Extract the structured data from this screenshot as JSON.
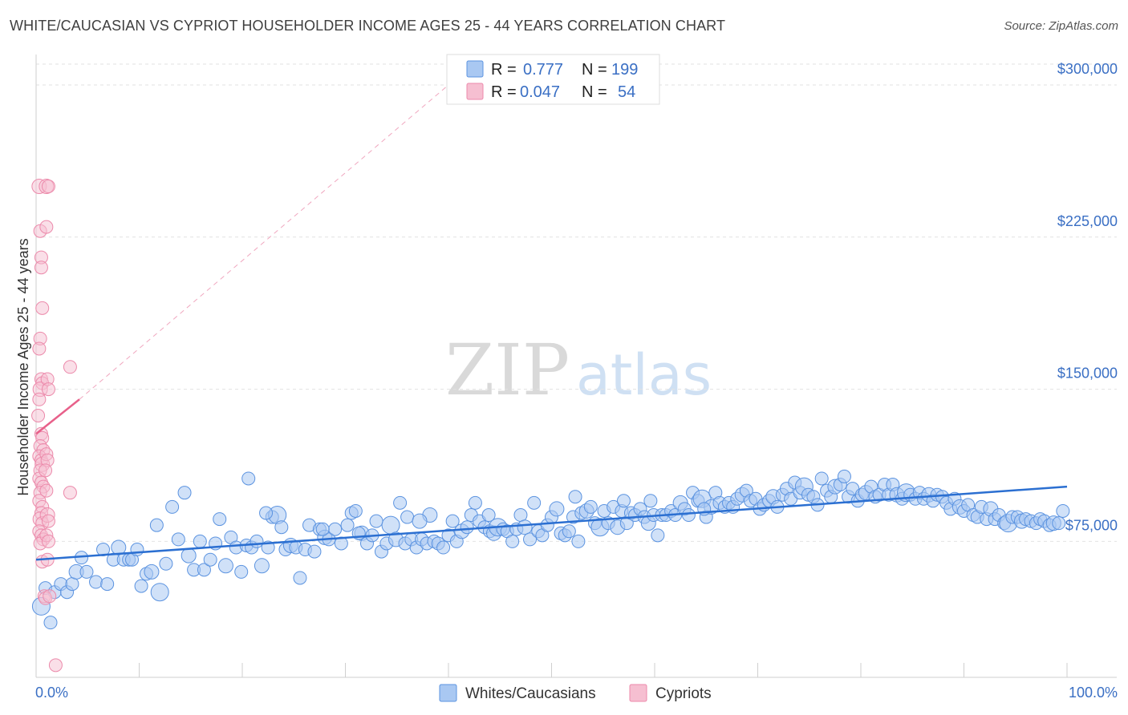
{
  "header": {
    "title": "WHITE/CAUCASIAN VS CYPRIOT HOUSEHOLDER INCOME AGES 25 - 44 YEARS CORRELATION CHART",
    "source": "Source: ZipAtlas.com"
  },
  "watermark": {
    "part1": "ZIP",
    "part2": "atlas"
  },
  "legend": {
    "rows": [
      {
        "r_label": "R =",
        "r_value": "0.777",
        "n_label": "N =",
        "n_value": "199"
      },
      {
        "r_label": "R =",
        "r_value": "0.047",
        "n_label": "N =",
        "n_value": "54"
      }
    ]
  },
  "bottom_legend": {
    "items": [
      "Whites/Caucasians",
      "Cypriots"
    ]
  },
  "chart_data": {
    "type": "scatter",
    "xlabel": "",
    "ylabel": "Householder Income Ages 25 - 44 years",
    "xlim": [
      0,
      100
    ],
    "ylim": [
      8000,
      315000
    ],
    "x_tick_labels": [
      "0.0%",
      "100.0%"
    ],
    "y_ticks": [
      75000,
      150000,
      225000,
      300000
    ],
    "y_tick_labels": [
      "$75,000",
      "$150,000",
      "$225,000",
      "$300,000"
    ],
    "grid": "horizontal-dashed",
    "colors": {
      "whites": "#5b93e0",
      "whites_fill": "#a9c8f2",
      "cypriots": "#ec8aab",
      "cypriots_fill": "#f6bfd1",
      "whites_line": "#2b6fd1",
      "cypriots_line": "#e8608a"
    },
    "series": [
      {
        "name": "Whites/Caucasians",
        "trendline": {
          "x": [
            0,
            100
          ],
          "y": [
            66000,
            102000
          ]
        },
        "points": [
          [
            0.5,
            43000
          ],
          [
            0.9,
            52000
          ],
          [
            1.4,
            35000
          ],
          [
            1.8,
            50000
          ],
          [
            2.4,
            54000
          ],
          [
            3.0,
            50000
          ],
          [
            3.5,
            54000
          ],
          [
            3.9,
            60000
          ],
          [
            4.4,
            67000
          ],
          [
            4.9,
            60000
          ],
          [
            5.8,
            55000
          ],
          [
            6.5,
            71000
          ],
          [
            6.9,
            54000
          ],
          [
            7.5,
            66000
          ],
          [
            8.0,
            72000
          ],
          [
            8.5,
            66000
          ],
          [
            9.0,
            66000
          ],
          [
            9.3,
            66000
          ],
          [
            9.8,
            71000
          ],
          [
            10.2,
            53000
          ],
          [
            10.7,
            59000
          ],
          [
            11.2,
            60000
          ],
          [
            11.7,
            83000
          ],
          [
            12.0,
            50000
          ],
          [
            12.6,
            64000
          ],
          [
            13.2,
            92000
          ],
          [
            13.8,
            76000
          ],
          [
            14.4,
            99000
          ],
          [
            14.8,
            68000
          ],
          [
            15.3,
            61000
          ],
          [
            15.9,
            75000
          ],
          [
            16.3,
            61000
          ],
          [
            16.9,
            66000
          ],
          [
            17.4,
            74000
          ],
          [
            17.8,
            86000
          ],
          [
            18.4,
            63000
          ],
          [
            18.9,
            77000
          ],
          [
            19.4,
            72000
          ],
          [
            19.9,
            60000
          ],
          [
            20.4,
            73000
          ],
          [
            20.9,
            72000
          ],
          [
            21.4,
            75000
          ],
          [
            21.9,
            63000
          ],
          [
            20.6,
            106000
          ],
          [
            22.5,
            72000
          ],
          [
            22.9,
            87000
          ],
          [
            23.4,
            88000
          ],
          [
            23.8,
            82000
          ],
          [
            24.2,
            71000
          ],
          [
            24.7,
            73000
          ],
          [
            25.2,
            72000
          ],
          [
            25.6,
            57000
          ],
          [
            26.1,
            71000
          ],
          [
            26.5,
            83000
          ],
          [
            27.0,
            70000
          ],
          [
            27.5,
            81000
          ],
          [
            28.0,
            77000
          ],
          [
            28.4,
            76000
          ],
          [
            29.0,
            81000
          ],
          [
            29.6,
            74000
          ],
          [
            30.2,
            83000
          ],
          [
            30.6,
            89000
          ],
          [
            31.0,
            90000
          ],
          [
            31.6,
            79000
          ],
          [
            32.1,
            74000
          ],
          [
            32.6,
            78000
          ],
          [
            33.0,
            85000
          ],
          [
            33.5,
            70000
          ],
          [
            34.0,
            74000
          ],
          [
            34.4,
            83000
          ],
          [
            34.9,
            76000
          ],
          [
            35.3,
            94000
          ],
          [
            35.8,
            74000
          ],
          [
            36.4,
            76000
          ],
          [
            36.9,
            72000
          ],
          [
            37.4,
            76000
          ],
          [
            37.9,
            74000
          ],
          [
            38.2,
            88000
          ],
          [
            38.6,
            75000
          ],
          [
            39.0,
            74000
          ],
          [
            39.5,
            72000
          ],
          [
            40.0,
            78000
          ],
          [
            40.4,
            85000
          ],
          [
            40.8,
            75000
          ],
          [
            41.3,
            80000
          ],
          [
            41.8,
            82000
          ],
          [
            42.2,
            88000
          ],
          [
            42.6,
            94000
          ],
          [
            43.0,
            85000
          ],
          [
            43.5,
            82000
          ],
          [
            44.0,
            80000
          ],
          [
            44.4,
            79000
          ],
          [
            44.8,
            82000
          ],
          [
            45.3,
            81000
          ],
          [
            45.7,
            80000
          ],
          [
            46.2,
            75000
          ],
          [
            46.6,
            81000
          ],
          [
            47.0,
            88000
          ],
          [
            47.4,
            82000
          ],
          [
            47.9,
            76000
          ],
          [
            48.3,
            94000
          ],
          [
            48.7,
            80000
          ],
          [
            49.1,
            78000
          ],
          [
            49.6,
            83000
          ],
          [
            50.0,
            87000
          ],
          [
            50.5,
            91000
          ],
          [
            50.9,
            79000
          ],
          [
            51.3,
            78000
          ],
          [
            51.7,
            80000
          ],
          [
            52.1,
            87000
          ],
          [
            52.6,
            75000
          ],
          [
            52.9,
            89000
          ],
          [
            53.4,
            90000
          ],
          [
            53.8,
            92000
          ],
          [
            54.2,
            84000
          ],
          [
            54.7,
            82000
          ],
          [
            55.1,
            90000
          ],
          [
            55.5,
            84000
          ],
          [
            56.0,
            92000
          ],
          [
            56.4,
            82000
          ],
          [
            56.8,
            90000
          ],
          [
            57.3,
            84000
          ],
          [
            57.7,
            89000
          ],
          [
            58.1,
            88000
          ],
          [
            58.6,
            91000
          ],
          [
            59.0,
            87000
          ],
          [
            59.4,
            84000
          ],
          [
            59.9,
            88000
          ],
          [
            60.3,
            78000
          ],
          [
            60.7,
            88000
          ],
          [
            61.1,
            88000
          ],
          [
            61.6,
            90000
          ],
          [
            62.0,
            88000
          ],
          [
            62.5,
            94000
          ],
          [
            62.9,
            91000
          ],
          [
            63.3,
            88000
          ],
          [
            63.7,
            99000
          ],
          [
            64.2,
            95000
          ],
          [
            64.6,
            96000
          ],
          [
            65.0,
            87000
          ],
          [
            65.5,
            92000
          ],
          [
            65.9,
            99000
          ],
          [
            66.3,
            94000
          ],
          [
            66.8,
            92000
          ],
          [
            67.2,
            94000
          ],
          [
            67.6,
            92000
          ],
          [
            68.0,
            96000
          ],
          [
            68.5,
            98000
          ],
          [
            68.9,
            100000
          ],
          [
            69.3,
            95000
          ],
          [
            69.8,
            96000
          ],
          [
            70.2,
            91000
          ],
          [
            70.6,
            93000
          ],
          [
            71.1,
            95000
          ],
          [
            71.5,
            97000
          ],
          [
            71.9,
            92000
          ],
          [
            72.4,
            98000
          ],
          [
            72.8,
            101000
          ],
          [
            73.2,
            96000
          ],
          [
            73.6,
            104000
          ],
          [
            74.1,
            99000
          ],
          [
            74.5,
            102000
          ],
          [
            74.9,
            98000
          ],
          [
            75.4,
            97000
          ],
          [
            75.8,
            93000
          ],
          [
            76.2,
            106000
          ],
          [
            76.7,
            100000
          ],
          [
            77.1,
            97000
          ],
          [
            77.5,
            102000
          ],
          [
            78.0,
            103000
          ],
          [
            78.4,
            107000
          ],
          [
            78.8,
            97000
          ],
          [
            79.2,
            101000
          ],
          [
            79.7,
            95000
          ],
          [
            80.1,
            98000
          ],
          [
            80.5,
            99000
          ],
          [
            81.0,
            102000
          ],
          [
            81.4,
            97000
          ],
          [
            81.8,
            98000
          ],
          [
            82.3,
            103000
          ],
          [
            82.7,
            98000
          ],
          [
            83.1,
            103000
          ],
          [
            83.5,
            98000
          ],
          [
            84.0,
            96000
          ],
          [
            84.4,
            99000
          ],
          [
            84.8,
            98000
          ],
          [
            85.3,
            96000
          ],
          [
            85.7,
            99000
          ],
          [
            86.1,
            96000
          ],
          [
            86.6,
            98000
          ],
          [
            87.0,
            95000
          ],
          [
            87.4,
            98000
          ],
          [
            87.9,
            97000
          ],
          [
            88.3,
            94000
          ],
          [
            88.7,
            91000
          ],
          [
            89.1,
            96000
          ],
          [
            89.6,
            92000
          ],
          [
            90.0,
            90000
          ],
          [
            90.4,
            93000
          ],
          [
            90.9,
            88000
          ],
          [
            91.3,
            87000
          ],
          [
            91.7,
            92000
          ],
          [
            92.2,
            86000
          ],
          [
            92.6,
            91000
          ],
          [
            93.0,
            86000
          ],
          [
            93.4,
            88000
          ],
          [
            93.9,
            84000
          ],
          [
            94.3,
            84000
          ],
          [
            94.7,
            87000
          ],
          [
            95.2,
            87000
          ],
          [
            95.6,
            85000
          ],
          [
            96.0,
            86000
          ],
          [
            96.5,
            85000
          ],
          [
            97.0,
            84000
          ],
          [
            97.4,
            86000
          ],
          [
            97.8,
            85000
          ],
          [
            98.3,
            83000
          ],
          [
            98.7,
            84000
          ],
          [
            99.2,
            84000
          ],
          [
            99.6,
            90000
          ],
          [
            22.3,
            89000
          ],
          [
            27.8,
            81000
          ],
          [
            31.3,
            79000
          ],
          [
            36.0,
            87000
          ],
          [
            37.2,
            85000
          ],
          [
            43.9,
            88000
          ],
          [
            52.3,
            97000
          ],
          [
            57.0,
            95000
          ],
          [
            59.6,
            95000
          ],
          [
            64.8,
            91000
          ]
        ]
      },
      {
        "name": "Cypriots",
        "trendline": {
          "x": [
            0,
            4.2
          ],
          "y": [
            128000,
            145000
          ]
        },
        "trendline_extension": {
          "x": [
            4.2,
            40
          ],
          "y": [
            145000,
            300000
          ]
        },
        "points": [
          [
            0.3,
            250000
          ],
          [
            0.4,
            228000
          ],
          [
            0.5,
            215000
          ],
          [
            0.5,
            210000
          ],
          [
            0.6,
            190000
          ],
          [
            0.4,
            175000
          ],
          [
            0.3,
            170000
          ],
          [
            0.5,
            155000
          ],
          [
            0.6,
            153000
          ],
          [
            0.4,
            150000
          ],
          [
            0.3,
            145000
          ],
          [
            0.2,
            137000
          ],
          [
            0.5,
            128000
          ],
          [
            0.6,
            126000
          ],
          [
            0.4,
            122000
          ],
          [
            0.7,
            120000
          ],
          [
            0.3,
            117000
          ],
          [
            0.5,
            115000
          ],
          [
            0.6,
            113000
          ],
          [
            0.4,
            110000
          ],
          [
            0.3,
            106000
          ],
          [
            0.5,
            104000
          ],
          [
            0.7,
            102000
          ],
          [
            0.4,
            99000
          ],
          [
            0.3,
            95000
          ],
          [
            0.6,
            92000
          ],
          [
            0.5,
            89000
          ],
          [
            0.4,
            86000
          ],
          [
            0.6,
            84000
          ],
          [
            0.3,
            80000
          ],
          [
            0.5,
            78000
          ],
          [
            0.7,
            76000
          ],
          [
            0.4,
            74000
          ],
          [
            0.6,
            65000
          ],
          [
            0.8,
            48000
          ],
          [
            0.9,
            47000
          ],
          [
            1.0,
            250000
          ],
          [
            1.2,
            250000
          ],
          [
            1.0,
            230000
          ],
          [
            1.1,
            155000
          ],
          [
            1.2,
            150000
          ],
          [
            1.0,
            118000
          ],
          [
            1.1,
            115000
          ],
          [
            0.9,
            110000
          ],
          [
            1.0,
            100000
          ],
          [
            1.1,
            88000
          ],
          [
            1.2,
            85000
          ],
          [
            1.0,
            78000
          ],
          [
            1.2,
            75000
          ],
          [
            1.1,
            66000
          ],
          [
            1.3,
            48000
          ],
          [
            1.9,
            14000
          ],
          [
            3.3,
            161000
          ],
          [
            3.3,
            99000
          ]
        ]
      }
    ]
  }
}
